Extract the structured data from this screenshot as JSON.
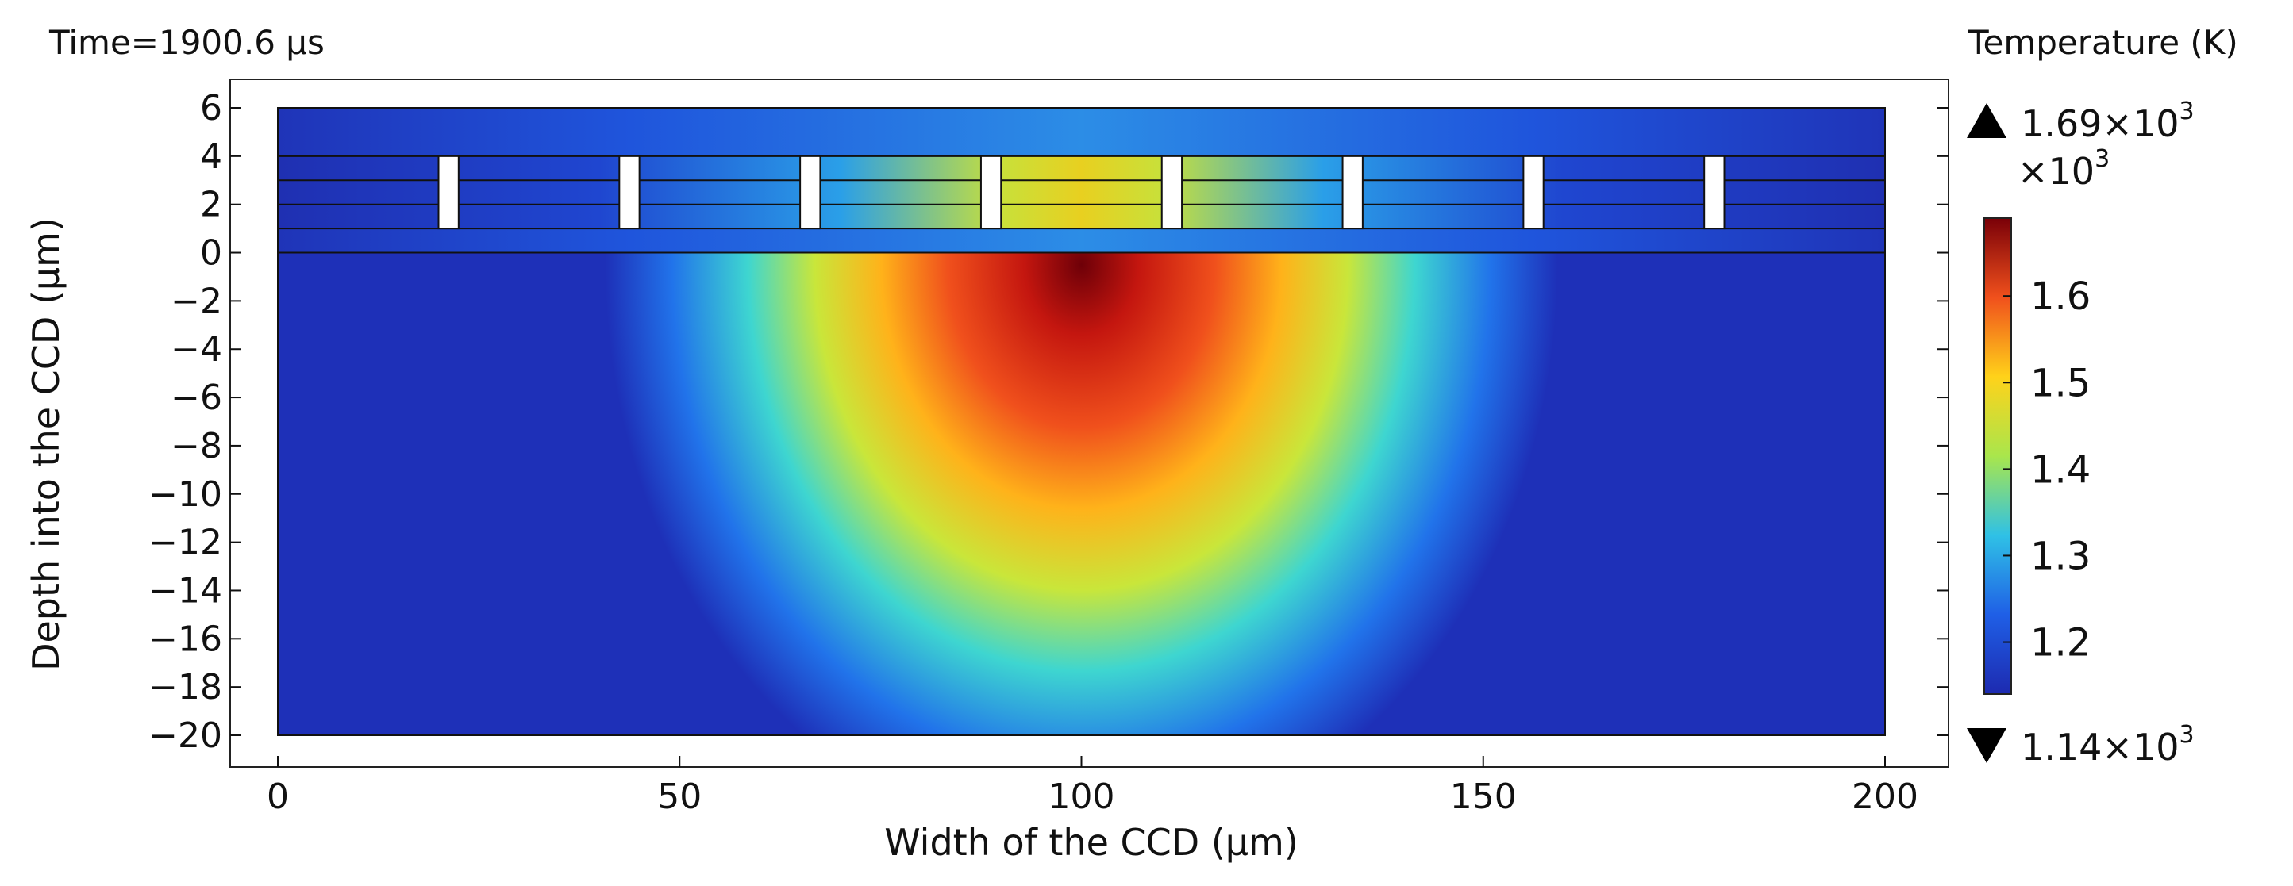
{
  "chart_data": {
    "type": "heatmap",
    "time_label": "Time=1900.6 μs",
    "xlabel": "Width of the CCD (μm)",
    "ylabel": "Depth into the CCD (μm)",
    "xlim": [
      0,
      200
    ],
    "ylim": [
      -20,
      6
    ],
    "x_ticks": [
      0,
      50,
      100,
      150,
      200
    ],
    "x_tick_labels": [
      "0",
      "50",
      "100",
      "150",
      "200"
    ],
    "y_ticks": [
      6,
      4,
      2,
      0,
      -2,
      -4,
      -6,
      -8,
      -10,
      -12,
      -14,
      -16,
      -18,
      -20
    ],
    "y_tick_labels": [
      "6",
      "4",
      "2",
      "0",
      "−2",
      "−4",
      "−6",
      "−8",
      "−10",
      "−12",
      "−14",
      "−16",
      "−18",
      "−20"
    ],
    "layer_boundaries_y": [
      0,
      1,
      2,
      3,
      4,
      6
    ],
    "gate_gaps": [
      {
        "x_start": 20,
        "x_end": 22.5,
        "y_start": 1,
        "y_end": 4
      },
      {
        "x_start": 42.5,
        "x_end": 45,
        "y_start": 1,
        "y_end": 4
      },
      {
        "x_start": 65,
        "x_end": 67.5,
        "y_start": 1,
        "y_end": 4
      },
      {
        "x_start": 87.5,
        "x_end": 90,
        "y_start": 1,
        "y_end": 4
      },
      {
        "x_start": 110,
        "x_end": 112.5,
        "y_start": 1,
        "y_end": 4
      },
      {
        "x_start": 132.5,
        "x_end": 135,
        "y_start": 1,
        "y_end": 4
      },
      {
        "x_start": 155,
        "x_end": 157.5,
        "y_start": 1,
        "y_end": 4
      },
      {
        "x_start": 177.5,
        "x_end": 180,
        "y_start": 1,
        "y_end": 4
      }
    ],
    "peak": {
      "x": 100,
      "y": -0.5,
      "value": 1690
    },
    "colorbar": {
      "title": "Temperature (K)",
      "multiplier": "×10",
      "multiplier_exp": "3",
      "range": [
        1.14,
        1.69
      ],
      "ticks": [
        1.2,
        1.3,
        1.4,
        1.5,
        1.6
      ],
      "tick_labels": [
        "1.2",
        "1.3",
        "1.4",
        "1.5",
        "1.6"
      ],
      "colormap": [
        "#1d2ab0",
        "#1f5fe6",
        "#2fc1e6",
        "#a9e64c",
        "#ffd21a",
        "#f0501c",
        "#7a0008"
      ],
      "max_label": "1.69×10",
      "max_exp": "3",
      "min_label": "1.14×10",
      "min_exp": "3"
    }
  }
}
